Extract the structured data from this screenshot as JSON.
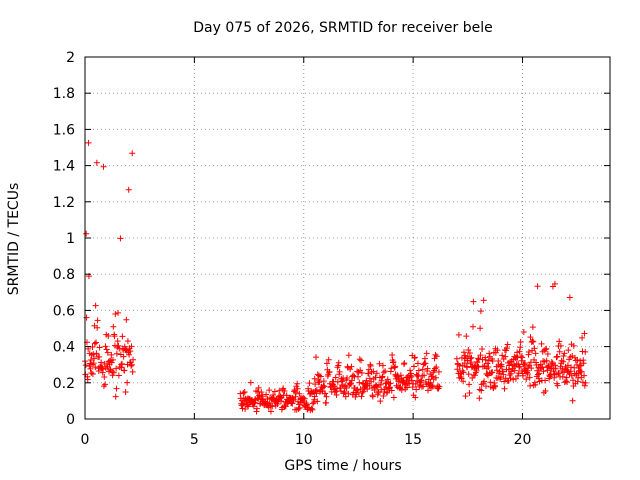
{
  "chart_data": {
    "type": "scatter",
    "title": "Day 075 of 2026, SRMTID for receiver bele",
    "xlabel": "GPS time / hours",
    "ylabel": "SRMTID / TECUs",
    "xlim": [
      0,
      24
    ],
    "ylim": [
      0,
      2
    ],
    "xticks": [
      0,
      5,
      10,
      15,
      20
    ],
    "xtick_labels": [
      "0",
      "5",
      "10",
      "15",
      "20"
    ],
    "yticks": [
      0,
      0.2,
      0.4,
      0.6,
      0.8,
      1,
      1.2,
      1.4,
      1.6,
      1.8,
      2
    ],
    "ytick_labels": [
      "0",
      "0.2",
      "0.4",
      "0.6",
      "0.8",
      "1",
      "1.2",
      "1.4",
      "1.6",
      "1.8",
      "2"
    ],
    "grid": true,
    "marker": "plus",
    "color": "#ff0000",
    "series": [
      {
        "name": "SRMTID",
        "segments": [
          {
            "start": 0.0,
            "end": 2.2,
            "step": 0.018,
            "base": 0.24,
            "amp": 0.3,
            "spike": 2.0,
            "spike_prob": 0.08,
            "period": 0.45
          },
          {
            "start": 7.1,
            "end": 10.5,
            "step": 0.02,
            "base": 0.07,
            "amp": 0.1,
            "spike": 0.22,
            "spike_prob": 0.03,
            "period": 0.6
          },
          {
            "start": 10.5,
            "end": 14.2,
            "step": 0.02,
            "base": 0.14,
            "amp": 0.16,
            "spike": 0.42,
            "spike_prob": 0.04,
            "period": 0.5
          },
          {
            "start": 14.2,
            "end": 16.2,
            "step": 0.02,
            "base": 0.17,
            "amp": 0.15,
            "spike": 0.36,
            "spike_prob": 0.03,
            "period": 0.5
          },
          {
            "start": 17.0,
            "end": 22.9,
            "step": 0.018,
            "base": 0.2,
            "amp": 0.22,
            "spike": 0.8,
            "spike_prob": 0.06,
            "period": 0.6
          }
        ]
      }
    ]
  }
}
